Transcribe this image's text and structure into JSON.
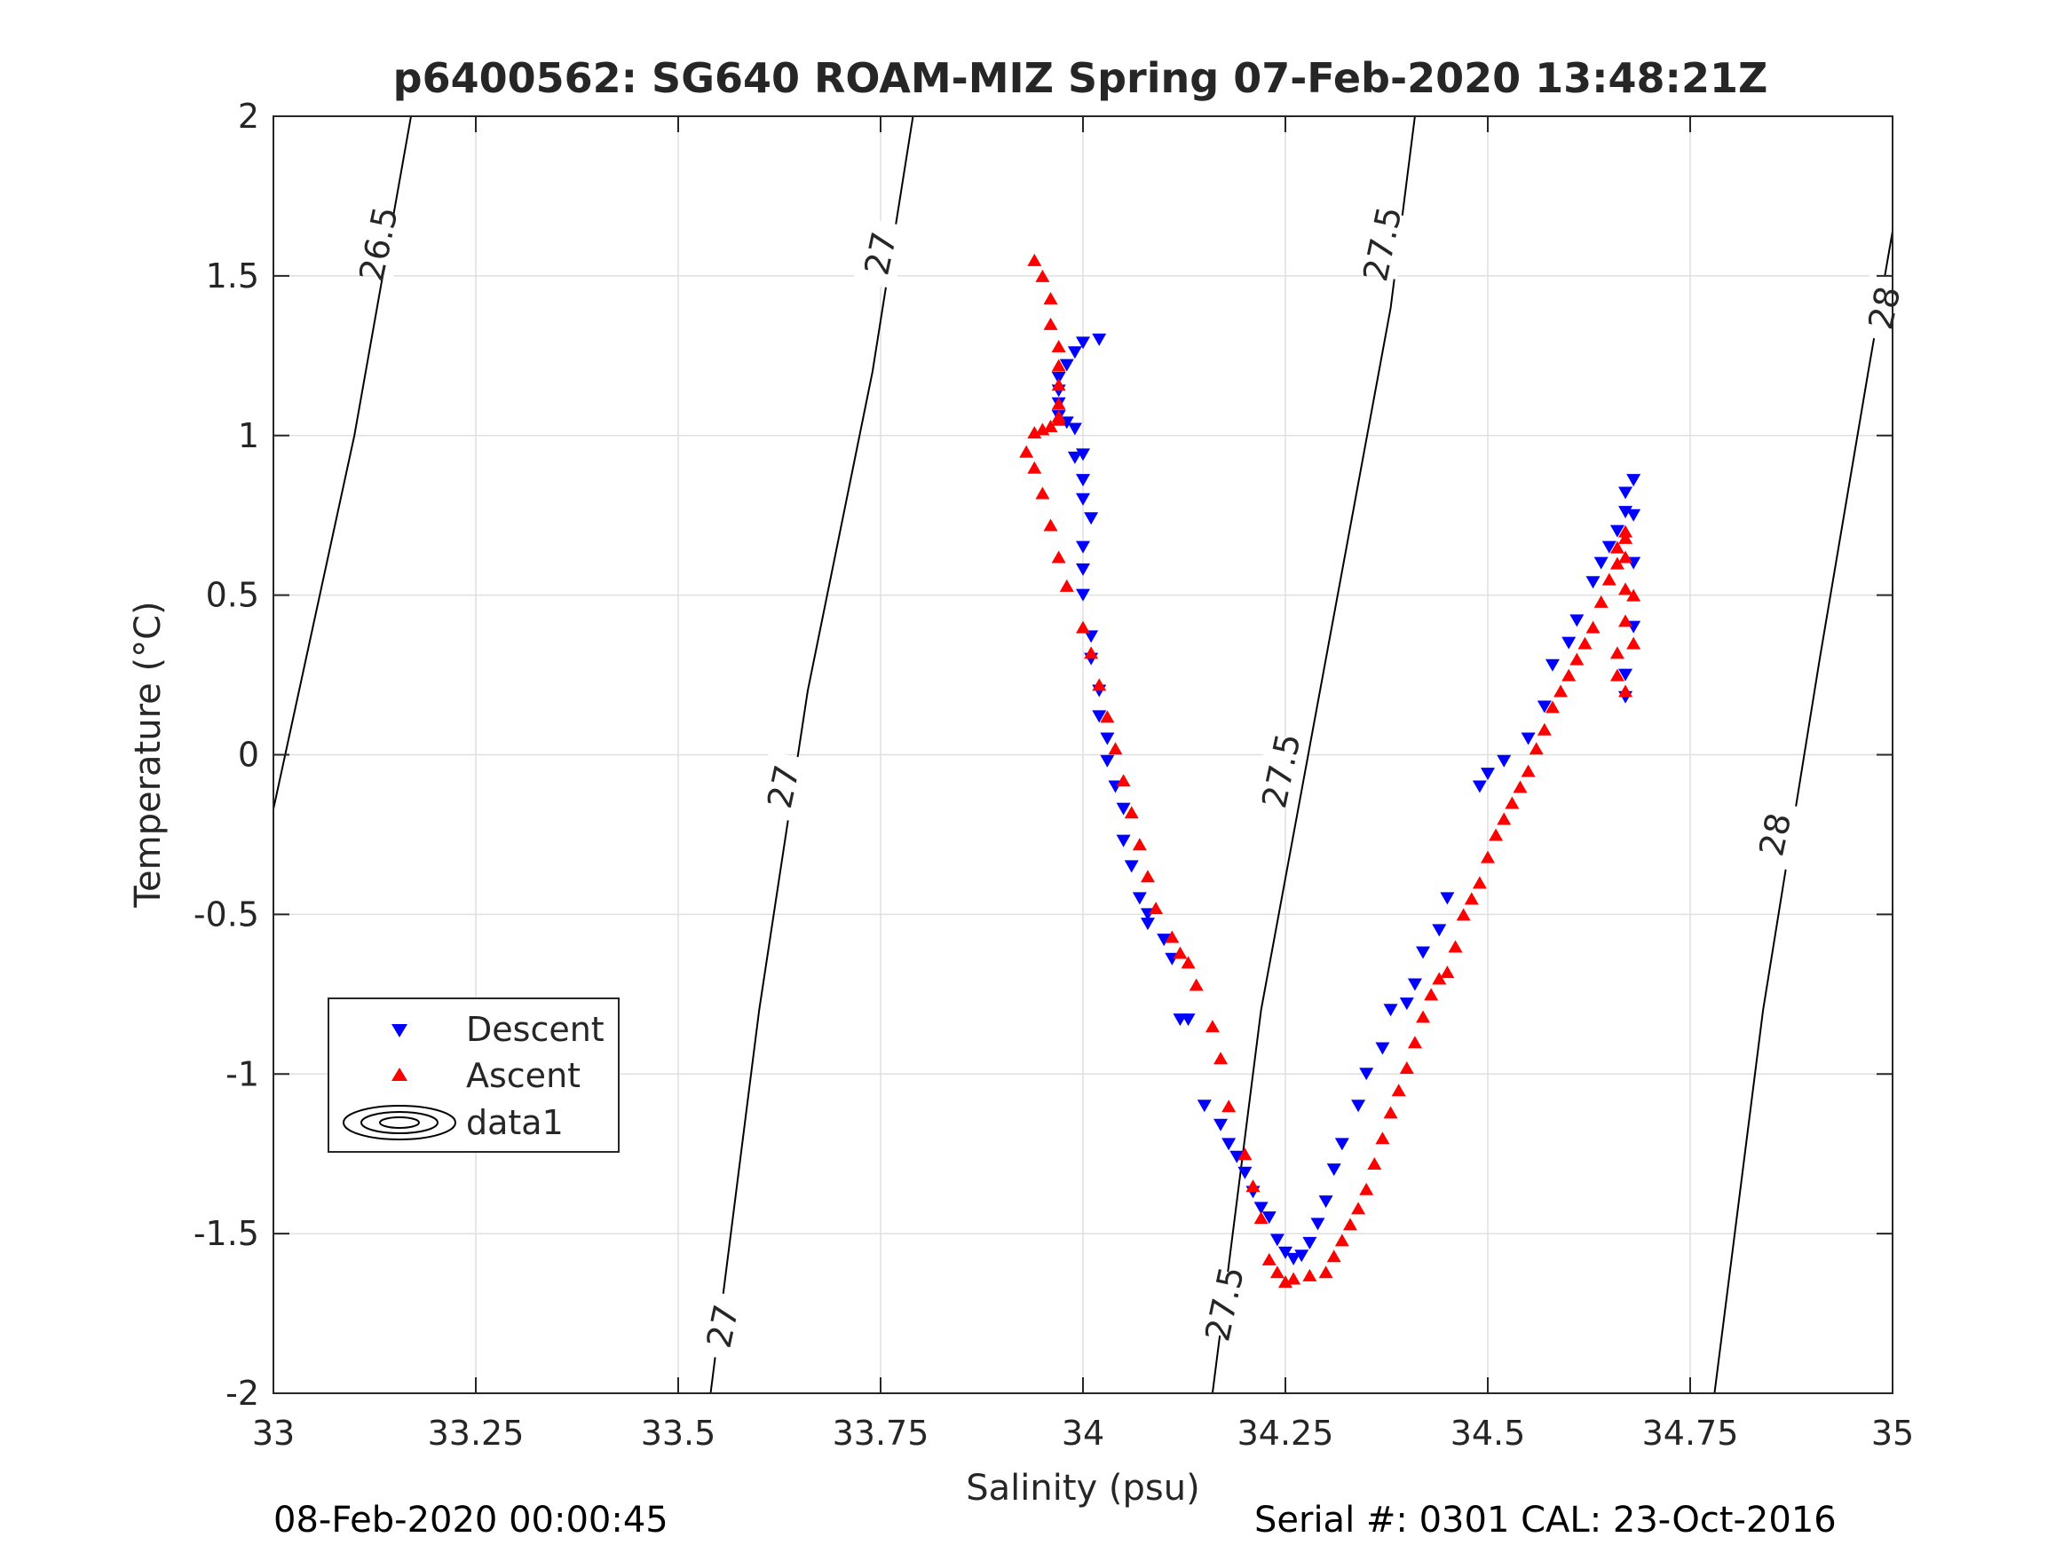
{
  "chart_data": {
    "type": "scatter",
    "title": "p6400562: SG640 ROAM-MIZ Spring 07-Feb-2020 13:48:21Z",
    "xlabel": "Salinity (psu)",
    "ylabel": "Temperature (°C)",
    "xlim": [
      33,
      35
    ],
    "ylim": [
      -2,
      2
    ],
    "grid": true,
    "x_ticks": [
      33,
      33.25,
      33.5,
      33.75,
      34,
      34.25,
      34.5,
      34.75,
      35
    ],
    "x_tick_labels": [
      "33",
      "33.25",
      "33.5",
      "33.75",
      "34",
      "34.25",
      "34.5",
      "34.75",
      "35"
    ],
    "y_ticks": [
      2,
      1.5,
      1,
      0.5,
      0,
      -0.5,
      -1,
      -1.5,
      -2
    ],
    "y_tick_labels": [
      "2",
      "1.5",
      "1",
      "0.5",
      "0",
      "-0.5",
      "-1",
      "-1.5",
      "-2"
    ],
    "legend_position": "lower-left",
    "legend": [
      {
        "label": "Descent",
        "marker": "triangle-down",
        "color": "#0000ff"
      },
      {
        "label": "Ascent",
        "marker": "triangle-up",
        "color": "#ff0000"
      },
      {
        "label": "data1",
        "marker": "contour",
        "color": "#000000"
      }
    ],
    "series": [
      {
        "name": "Descent",
        "marker": "triangle-down",
        "color": "#0000ff",
        "x": [
          34.02,
          34.0,
          33.99,
          33.98,
          33.97,
          33.97,
          33.97,
          33.97,
          33.98,
          33.99,
          33.99,
          34.0,
          34.0,
          34.0,
          34.01,
          34.0,
          34.0,
          34.0,
          34.01,
          34.01,
          34.02,
          34.02,
          34.03,
          34.03,
          34.04,
          34.05,
          34.05,
          34.06,
          34.07,
          34.08,
          34.08,
          34.1,
          34.11,
          34.12,
          34.13,
          34.15,
          34.17,
          34.18,
          34.19,
          34.2,
          34.21,
          34.22,
          34.23,
          34.24,
          34.25,
          34.26,
          34.27,
          34.28,
          34.29,
          34.3,
          34.31,
          34.32,
          34.34,
          34.35,
          34.37,
          34.38,
          34.4,
          34.41,
          34.42,
          34.44,
          34.45,
          34.49,
          34.5,
          34.52,
          34.55,
          34.57,
          34.58,
          34.6,
          34.61,
          34.63,
          34.64,
          34.65,
          34.66,
          34.67,
          34.67,
          34.68,
          34.68,
          34.68,
          34.68,
          34.67,
          34.67
        ],
        "y": [
          1.3,
          1.29,
          1.26,
          1.22,
          1.18,
          1.14,
          1.1,
          1.06,
          1.04,
          1.02,
          0.93,
          0.94,
          0.86,
          0.8,
          0.74,
          0.65,
          0.58,
          0.5,
          0.37,
          0.3,
          0.2,
          0.12,
          0.05,
          -0.02,
          -0.1,
          -0.17,
          -0.27,
          -0.35,
          -0.45,
          -0.5,
          -0.53,
          -0.58,
          -0.64,
          -0.83,
          -0.83,
          -1.1,
          -1.16,
          -1.22,
          -1.26,
          -1.31,
          -1.37,
          -1.42,
          -1.45,
          -1.52,
          -1.56,
          -1.58,
          -1.57,
          -1.53,
          -1.47,
          -1.4,
          -1.3,
          -1.22,
          -1.1,
          -1.0,
          -0.92,
          -0.8,
          -0.78,
          -0.72,
          -0.62,
          -0.55,
          -0.45,
          -0.1,
          -0.06,
          -0.02,
          0.05,
          0.15,
          0.28,
          0.35,
          0.42,
          0.54,
          0.6,
          0.65,
          0.7,
          0.76,
          0.82,
          0.86,
          0.75,
          0.6,
          0.4,
          0.25,
          0.18
        ]
      },
      {
        "name": "Ascent",
        "marker": "triangle-up",
        "color": "#ff0000",
        "x": [
          33.94,
          33.95,
          33.96,
          33.96,
          33.97,
          33.97,
          33.97,
          33.97,
          33.97,
          33.97,
          33.96,
          33.95,
          33.94,
          33.93,
          33.94,
          33.95,
          33.96,
          33.97,
          33.98,
          34.0,
          34.01,
          34.02,
          34.03,
          34.04,
          34.05,
          34.06,
          34.07,
          34.08,
          34.09,
          34.11,
          34.12,
          34.13,
          34.14,
          34.16,
          34.17,
          34.18,
          34.2,
          34.21,
          34.22,
          34.23,
          34.24,
          34.25,
          34.26,
          34.28,
          34.3,
          34.31,
          34.32,
          34.33,
          34.34,
          34.35,
          34.36,
          34.37,
          34.38,
          34.39,
          34.4,
          34.41,
          34.42,
          34.43,
          34.44,
          34.45,
          34.46,
          34.47,
          34.48,
          34.49,
          34.5,
          34.51,
          34.52,
          34.53,
          34.54,
          34.55,
          34.56,
          34.57,
          34.58,
          34.59,
          34.6,
          34.61,
          34.62,
          34.63,
          34.64,
          34.65,
          34.66,
          34.66,
          34.67,
          34.67,
          34.67,
          34.67,
          34.67,
          34.66,
          34.66,
          34.67,
          34.68,
          34.68
        ],
        "y": [
          1.55,
          1.5,
          1.43,
          1.35,
          1.28,
          1.22,
          1.16,
          1.1,
          1.06,
          1.05,
          1.03,
          1.02,
          1.01,
          0.95,
          0.9,
          0.82,
          0.72,
          0.62,
          0.53,
          0.4,
          0.32,
          0.22,
          0.12,
          0.02,
          -0.08,
          -0.18,
          -0.28,
          -0.38,
          -0.48,
          -0.57,
          -0.62,
          -0.65,
          -0.72,
          -0.85,
          -0.95,
          -1.1,
          -1.25,
          -1.35,
          -1.45,
          -1.58,
          -1.62,
          -1.65,
          -1.64,
          -1.63,
          -1.62,
          -1.57,
          -1.52,
          -1.47,
          -1.42,
          -1.36,
          -1.28,
          -1.2,
          -1.12,
          -1.05,
          -0.98,
          -0.9,
          -0.82,
          -0.75,
          -0.7,
          -0.68,
          -0.6,
          -0.5,
          -0.45,
          -0.4,
          -0.32,
          -0.25,
          -0.2,
          -0.15,
          -0.1,
          -0.05,
          0.02,
          0.08,
          0.15,
          0.2,
          0.25,
          0.3,
          0.35,
          0.4,
          0.48,
          0.55,
          0.6,
          0.65,
          0.68,
          0.7,
          0.62,
          0.52,
          0.42,
          0.32,
          0.25,
          0.2,
          0.35,
          0.5
        ]
      }
    ],
    "contours": [
      {
        "label": "26.5",
        "x": [
          33.0,
          33.1,
          33.17
        ],
        "y": [
          -0.17,
          1.0,
          2.0
        ]
      },
      {
        "label": "27",
        "x": [
          33.54,
          33.6,
          33.66,
          33.74,
          33.79
        ],
        "y": [
          -2.0,
          -0.8,
          0.2,
          1.2,
          2.0
        ]
      },
      {
        "label": "27.5",
        "x": [
          34.16,
          34.22,
          34.3,
          34.38,
          34.41
        ],
        "y": [
          -2.0,
          -0.8,
          0.3,
          1.4,
          2.0
        ]
      },
      {
        "label": "28",
        "x": [
          34.78,
          34.84,
          34.91,
          34.97,
          35.0
        ],
        "y": [
          -2.0,
          -0.8,
          0.3,
          1.2,
          1.64
        ]
      }
    ],
    "contour_labels": [
      {
        "text": "26.5",
        "x": 33.13,
        "y": 1.6
      },
      {
        "text": "27",
        "x": 33.75,
        "y": 1.57
      },
      {
        "text": "27",
        "x": 33.63,
        "y": -0.1
      },
      {
        "text": "27",
        "x": 33.555,
        "y": -1.79
      },
      {
        "text": "27.5",
        "x": 34.37,
        "y": 1.6
      },
      {
        "text": "27.5",
        "x": 34.245,
        "y": -0.05
      },
      {
        "text": "27.5",
        "x": 34.175,
        "y": -1.72
      },
      {
        "text": "28",
        "x": 34.99,
        "y": 1.4
      },
      {
        "text": "28",
        "x": 34.855,
        "y": -0.25
      }
    ]
  },
  "footer": {
    "left": "08-Feb-2020 00:00:45",
    "right": "Serial #: 0301  CAL: 23-Oct-2016"
  }
}
